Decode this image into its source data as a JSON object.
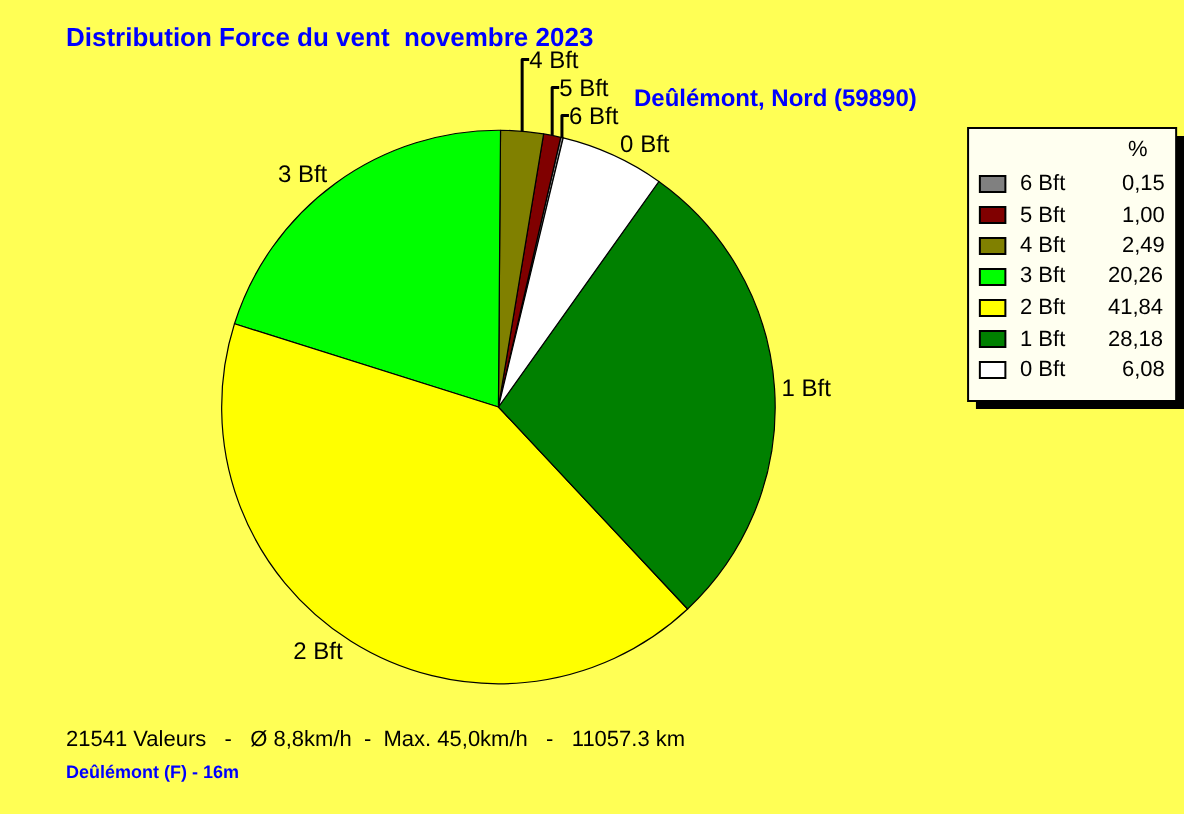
{
  "chart_data": {
    "type": "pie",
    "title": "Distribution Force du vent  novembre 2023",
    "subtitle": "Deûlémont, Nord (59890)",
    "categories": [
      "6 Bft",
      "5 Bft",
      "4 Bft",
      "3 Bft",
      "2 Bft",
      "1 Bft",
      "0 Bft"
    ],
    "values": [
      0.15,
      1.0,
      2.49,
      20.26,
      41.84,
      28.18,
      6.08
    ],
    "value_labels": [
      "0,15",
      "1,00",
      "2,49",
      "20,26",
      "41,84",
      "28,18",
      "6,08"
    ],
    "colors": [
      "#808080",
      "#800000",
      "#808000",
      "#00ff00",
      "#ffff00",
      "#008000",
      "#ffffff"
    ],
    "legend": "right",
    "legend_title": "%",
    "annotations": [
      "21541 Valeurs   -   Ø 8,8km/h  -  Max. 45,0km/h   -   11057.3 km",
      "Deûlémont (F) - 16m"
    ]
  }
}
